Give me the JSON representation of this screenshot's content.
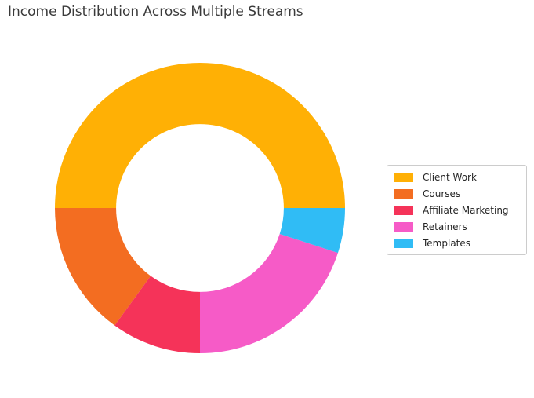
{
  "title": "Income Distribution Across Multiple Streams",
  "chart_data": {
    "type": "pie",
    "subtype": "donut",
    "title": "Income Distribution Across Multiple Streams",
    "labels": [
      "Client Work",
      "Courses",
      "Affiliate Marketing",
      "Retainers",
      "Templates"
    ],
    "values": [
      50,
      15,
      10,
      20,
      5
    ],
    "unit": "percent_of_total",
    "colors": [
      "#FFB005",
      "#F36D21",
      "#F53359",
      "#F65BC7",
      "#30BCF5"
    ],
    "start_angle": 0,
    "direction": "counterclockwise",
    "donut_hole_ratio": 0.578,
    "data_labels_shown": false,
    "legend": {
      "position": "right",
      "items": [
        "Client Work",
        "Courses",
        "Affiliate Marketing",
        "Retainers",
        "Templates"
      ]
    }
  }
}
